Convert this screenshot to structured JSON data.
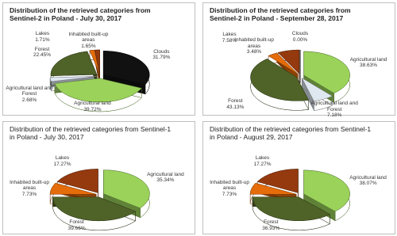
{
  "chart_data": [
    {
      "type": "pie",
      "title": "Distribution of the retrieved categories from Sentinel-2 in Poland - July 30, 2017",
      "categories": [
        "Clouds",
        "Agricultural land",
        "Agricultural land and Forest",
        "Forest",
        "Inhabited built-up areas",
        "Lakes"
      ],
      "values": [
        31.79,
        39.72,
        2.68,
        22.45,
        1.65,
        1.71
      ],
      "value_labels": [
        "31.79%",
        "39.72%",
        "2.68%",
        "22.45%",
        "1.65%",
        "1.71%"
      ],
      "colors": [
        "#111111",
        "#9bd35a",
        "#dfe8f0",
        "#4f6228",
        "#e46c0a",
        "#953a0f"
      ]
    },
    {
      "type": "pie",
      "title": "Distribution of the retrieved categories from Sentinel-2 in Poland - September 28, 2017",
      "categories": [
        "Clouds",
        "Agricultural land",
        "Agricultural land and Forest",
        "Forest",
        "Inhabited built-up areas",
        "Lakes"
      ],
      "values": [
        0.0,
        38.63,
        7.18,
        43.13,
        3.48,
        7.58
      ],
      "value_labels": [
        "0.00%",
        "38.63%",
        "7.18%",
        "43.13%",
        "3.48%",
        "7.58%"
      ],
      "colors": [
        "#111111",
        "#9bd35a",
        "#dfe8f0",
        "#4f6228",
        "#e46c0a",
        "#953a0f"
      ]
    },
    {
      "type": "pie",
      "title": "Distribution of the retrieved categories from Sentinel-1 in Poland - July 30, 2017",
      "categories": [
        "Agricultural land",
        "Forest",
        "Inhabited built-up areas",
        "Lakes"
      ],
      "values": [
        35.34,
        39.66,
        7.73,
        17.27
      ],
      "value_labels": [
        "35.34%",
        "39.66%",
        "7.73%",
        "17.27%"
      ],
      "colors": [
        "#9bd35a",
        "#4f6228",
        "#e46c0a",
        "#953a0f"
      ]
    },
    {
      "type": "pie",
      "title": "Distribution of the retrieved categories from Sentinel-1 in Poland - August 29, 2017",
      "categories": [
        "Agricultural land",
        "Forest",
        "Inhabited built-up areas",
        "Lakes"
      ],
      "values": [
        38.07,
        36.93,
        7.73,
        17.27
      ],
      "value_labels": [
        "38.07%",
        "36.93%",
        "7.73%",
        "17.27%"
      ],
      "colors": [
        "#9bd35a",
        "#4f6228",
        "#e46c0a",
        "#953a0f"
      ]
    }
  ]
}
